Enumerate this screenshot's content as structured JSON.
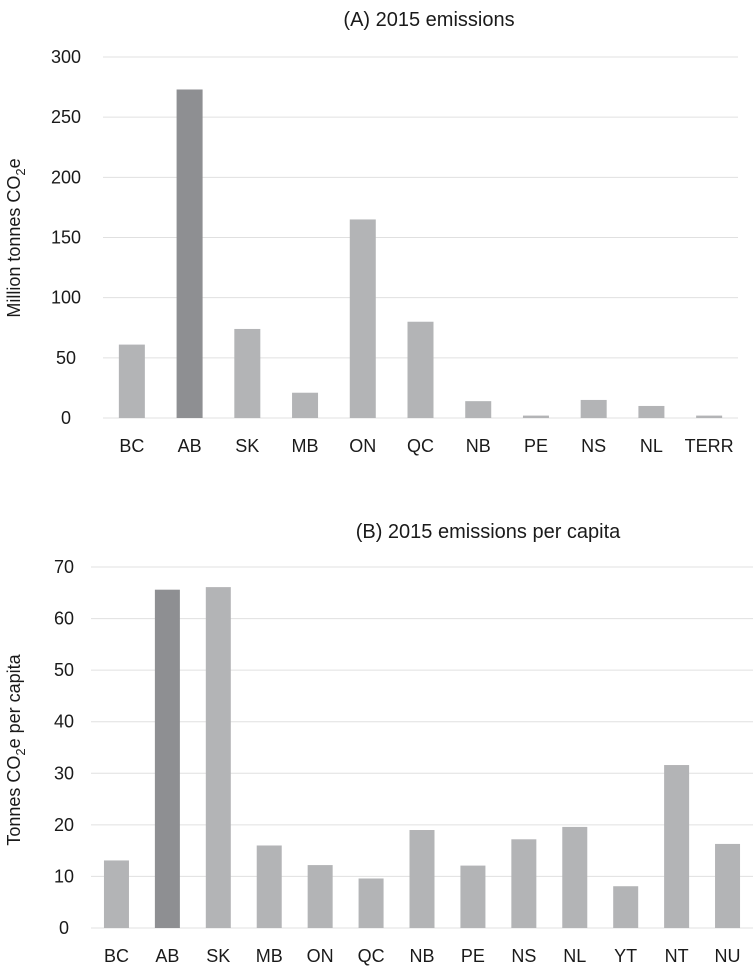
{
  "chart_data": [
    {
      "type": "bar",
      "title": "(A) 2015 emissions",
      "ylabel_main": "Million tonnes CO",
      "ylabel_sub": "2",
      "ylabel_tail": "e",
      "ylim": [
        0,
        300
      ],
      "yticks": [
        0,
        50,
        100,
        150,
        200,
        250,
        300
      ],
      "grid": true,
      "categories": [
        "BC",
        "AB",
        "SK",
        "MB",
        "ON",
        "QC",
        "NB",
        "PE",
        "NS",
        "NL",
        "TERR"
      ],
      "values": [
        61,
        273,
        74,
        21,
        165,
        80,
        14,
        2,
        15,
        10,
        2
      ],
      "highlight": "AB",
      "colors": {
        "bar": "#b3b4b6",
        "highlight": "#8e8f92",
        "grid": "#e0e0e0"
      }
    },
    {
      "type": "bar",
      "title": "(B) 2015 emissions per capita",
      "ylabel_main": "Tonnes CO",
      "ylabel_sub": "2",
      "ylabel_tail": "e per capita",
      "ylim": [
        0,
        70
      ],
      "yticks": [
        0,
        10,
        20,
        30,
        40,
        50,
        60,
        70
      ],
      "grid": true,
      "categories": [
        "BC",
        "AB",
        "SK",
        "MB",
        "ON",
        "QC",
        "NB",
        "PE",
        "NS",
        "NL",
        "YT",
        "NT",
        "NU"
      ],
      "values": [
        13.1,
        65.6,
        66.1,
        16.0,
        12.2,
        9.6,
        19.0,
        12.1,
        17.2,
        19.6,
        8.1,
        31.6,
        16.3
      ],
      "highlight": "AB",
      "colors": {
        "bar": "#b3b4b6",
        "highlight": "#8e8f92",
        "grid": "#e0e0e0"
      }
    }
  ]
}
